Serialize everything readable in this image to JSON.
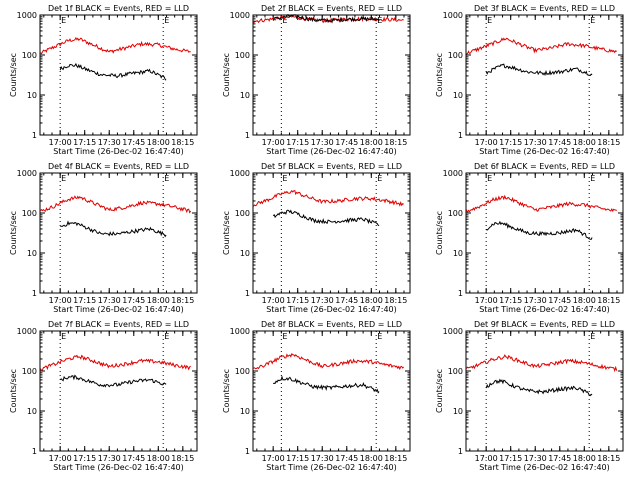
{
  "colors": {
    "background": "#ffffff",
    "events": "#000000",
    "lld": "#e00000"
  },
  "chart_data": [
    {
      "type": "line",
      "title": "Det 1f BLACK = Events, RED = LLD",
      "xlabel": "Start Time (26-Dec-02 16:47:40)",
      "ylabel": "Counts/sec",
      "y_scale": "log",
      "ylim": [
        1,
        1000
      ],
      "x_tick_labels": [
        "17:00",
        "17:15",
        "17:30",
        "17:45",
        "18:00",
        "18:15"
      ],
      "y_tick_labels": [
        "1",
        "10",
        "100",
        "1000"
      ],
      "markers": [
        "E",
        "E"
      ],
      "marker_times": [
        "17:00",
        "18:03"
      ],
      "series": [
        {
          "color": "red",
          "x": [
            "16:48",
            "16:55",
            "17:05",
            "17:12",
            "17:20",
            "17:30",
            "17:40",
            "17:50",
            "18:00",
            "18:10",
            "18:20"
          ],
          "values": [
            110,
            150,
            230,
            250,
            180,
            120,
            150,
            190,
            180,
            140,
            120
          ]
        },
        {
          "color": "black",
          "x": [
            "17:00",
            "17:05",
            "17:10",
            "17:15",
            "17:25",
            "17:35",
            "17:45",
            "17:55",
            "18:05"
          ],
          "values": [
            45,
            55,
            55,
            45,
            32,
            30,
            35,
            40,
            25
          ]
        }
      ]
    },
    {
      "type": "line",
      "title": "Det 2f BLACK = Events, RED = LLD",
      "xlabel": "Start Time (26-Dec-02 16:47:40)",
      "ylabel": "Counts/sec",
      "y_scale": "log",
      "ylim": [
        1,
        1000
      ],
      "x_tick_labels": [
        "17:00",
        "17:15",
        "17:30",
        "17:45",
        "18:00",
        "18:15"
      ],
      "y_tick_labels": [
        "1",
        "10",
        "100",
        "1000"
      ],
      "markers": [
        "E",
        "E"
      ],
      "marker_times": [
        "17:05",
        "18:03"
      ],
      "series": [
        {
          "color": "red",
          "x": [
            "16:48",
            "16:55",
            "17:05",
            "17:12",
            "17:20",
            "17:30",
            "17:40",
            "17:50",
            "18:00",
            "18:10",
            "18:20"
          ],
          "values": [
            700,
            750,
            850,
            900,
            800,
            720,
            760,
            800,
            800,
            770,
            740
          ]
        },
        {
          "color": "black",
          "x": [
            "17:00",
            "17:05",
            "17:10",
            "17:15",
            "17:25",
            "17:35",
            "17:45",
            "17:55",
            "18:05"
          ],
          "values": [
            800,
            850,
            950,
            900,
            750,
            720,
            780,
            800,
            780
          ]
        }
      ]
    },
    {
      "type": "line",
      "title": "Det 3f BLACK = Events, RED = LLD",
      "xlabel": "Start Time (26-Dec-02 16:47:40)",
      "ylabel": "Counts/sec",
      "y_scale": "log",
      "ylim": [
        1,
        1000
      ],
      "x_tick_labels": [
        "17:00",
        "17:15",
        "17:30",
        "17:45",
        "18:00",
        "18:15"
      ],
      "y_tick_labels": [
        "1",
        "10",
        "100",
        "1000"
      ],
      "markers": [
        "E",
        "E"
      ],
      "marker_times": [
        "17:00",
        "18:03"
      ],
      "series": [
        {
          "color": "red",
          "x": [
            "16:48",
            "16:55",
            "17:05",
            "17:12",
            "17:20",
            "17:30",
            "17:40",
            "17:50",
            "18:00",
            "18:10",
            "18:20"
          ],
          "values": [
            110,
            140,
            200,
            260,
            190,
            130,
            150,
            190,
            170,
            140,
            120
          ]
        },
        {
          "color": "black",
          "x": [
            "17:00",
            "17:05",
            "17:10",
            "17:15",
            "17:25",
            "17:35",
            "17:45",
            "17:55",
            "18:05"
          ],
          "values": [
            35,
            45,
            55,
            50,
            38,
            35,
            38,
            45,
            32
          ]
        }
      ]
    },
    {
      "type": "line",
      "title": "Det 4f BLACK = Events, RED = LLD",
      "xlabel": "Start Time (26-Dec-02 16:47:40)",
      "ylabel": "Counts/sec",
      "y_scale": "log",
      "ylim": [
        1,
        1000
      ],
      "x_tick_labels": [
        "17:00",
        "17:15",
        "17:30",
        "17:45",
        "18:00",
        "18:15"
      ],
      "y_tick_labels": [
        "1",
        "10",
        "100",
        "1000"
      ],
      "markers": [
        "E",
        "E"
      ],
      "marker_times": [
        "17:00",
        "18:03"
      ],
      "series": [
        {
          "color": "red",
          "x": [
            "16:48",
            "16:55",
            "17:05",
            "17:12",
            "17:20",
            "17:30",
            "17:40",
            "17:50",
            "18:00",
            "18:10",
            "18:20"
          ],
          "values": [
            110,
            140,
            220,
            250,
            180,
            120,
            140,
            180,
            170,
            140,
            110
          ]
        },
        {
          "color": "black",
          "x": [
            "17:00",
            "17:05",
            "17:10",
            "17:15",
            "17:25",
            "17:35",
            "17:45",
            "17:55",
            "18:05"
          ],
          "values": [
            45,
            55,
            55,
            45,
            30,
            30,
            35,
            40,
            28
          ]
        }
      ]
    },
    {
      "type": "line",
      "title": "Det 5f BLACK = Events, RED = LLD",
      "xlabel": "Start Time (26-Dec-02 16:47:40)",
      "ylabel": "Counts/sec",
      "y_scale": "log",
      "ylim": [
        1,
        1000
      ],
      "x_tick_labels": [
        "17:00",
        "17:15",
        "17:30",
        "17:45",
        "18:00",
        "18:15"
      ],
      "y_tick_labels": [
        "1",
        "10",
        "100",
        "1000"
      ],
      "markers": [
        "E",
        "E"
      ],
      "marker_times": [
        "17:05",
        "18:03"
      ],
      "series": [
        {
          "color": "red",
          "x": [
            "16:48",
            "16:55",
            "17:05",
            "17:12",
            "17:20",
            "17:30",
            "17:40",
            "17:50",
            "18:00",
            "18:10",
            "18:20"
          ],
          "values": [
            160,
            200,
            300,
            350,
            260,
            190,
            200,
            230,
            230,
            200,
            160
          ]
        },
        {
          "color": "black",
          "x": [
            "17:00",
            "17:05",
            "17:10",
            "17:15",
            "17:25",
            "17:35",
            "17:45",
            "17:55",
            "18:05"
          ],
          "values": [
            80,
            100,
            110,
            95,
            65,
            60,
            65,
            70,
            50
          ]
        }
      ]
    },
    {
      "type": "line",
      "title": "Det 6f BLACK = Events, RED = LLD",
      "xlabel": "Start Time (26-Dec-02 16:47:40)",
      "ylabel": "Counts/sec",
      "y_scale": "log",
      "ylim": [
        1,
        1000
      ],
      "x_tick_labels": [
        "17:00",
        "17:15",
        "17:30",
        "17:45",
        "18:00",
        "18:15"
      ],
      "y_tick_labels": [
        "1",
        "10",
        "100",
        "1000"
      ],
      "markers": [
        "E",
        "E"
      ],
      "marker_times": [
        "17:00",
        "18:03"
      ],
      "series": [
        {
          "color": "red",
          "x": [
            "16:48",
            "16:55",
            "17:05",
            "17:12",
            "17:20",
            "17:30",
            "17:40",
            "17:50",
            "18:00",
            "18:10",
            "18:20"
          ],
          "values": [
            110,
            140,
            220,
            250,
            180,
            120,
            140,
            170,
            160,
            130,
            110
          ]
        },
        {
          "color": "black",
          "x": [
            "17:00",
            "17:05",
            "17:10",
            "17:15",
            "17:25",
            "17:35",
            "17:45",
            "17:55",
            "18:05"
          ],
          "values": [
            40,
            55,
            55,
            45,
            32,
            30,
            32,
            38,
            22
          ]
        }
      ]
    },
    {
      "type": "line",
      "title": "Det 7f BLACK = Events, RED = LLD",
      "xlabel": "Start Time (26-Dec-02 16:47:40)",
      "ylabel": "Counts/sec",
      "y_scale": "log",
      "ylim": [
        1,
        1000
      ],
      "x_tick_labels": [
        "17:00",
        "17:15",
        "17:30",
        "17:45",
        "18:00",
        "18:15"
      ],
      "y_tick_labels": [
        "1",
        "10",
        "100",
        "1000"
      ],
      "markers": [
        "E",
        "E"
      ],
      "marker_times": [
        "17:00",
        "18:03"
      ],
      "series": [
        {
          "color": "red",
          "x": [
            "16:48",
            "16:55",
            "17:05",
            "17:12",
            "17:20",
            "17:30",
            "17:40",
            "17:50",
            "18:00",
            "18:10",
            "18:20"
          ],
          "values": [
            110,
            140,
            200,
            230,
            180,
            130,
            150,
            180,
            170,
            140,
            120
          ]
        },
        {
          "color": "black",
          "x": [
            "17:00",
            "17:05",
            "17:10",
            "17:15",
            "17:25",
            "17:35",
            "17:45",
            "17:55",
            "18:05"
          ],
          "values": [
            60,
            70,
            70,
            60,
            45,
            45,
            55,
            60,
            45
          ]
        }
      ]
    },
    {
      "type": "line",
      "title": "Det 8f BLACK = Events, RED = LLD",
      "xlabel": "Start Time (26-Dec-02 16:47:40)",
      "ylabel": "Counts/sec",
      "y_scale": "log",
      "ylim": [
        1,
        1000
      ],
      "x_tick_labels": [
        "17:00",
        "17:15",
        "17:30",
        "17:45",
        "18:00",
        "18:15"
      ],
      "y_tick_labels": [
        "1",
        "10",
        "100",
        "1000"
      ],
      "markers": [
        "E",
        "E"
      ],
      "marker_times": [
        "17:05",
        "18:03"
      ],
      "series": [
        {
          "color": "red",
          "x": [
            "16:48",
            "16:55",
            "17:05",
            "17:12",
            "17:20",
            "17:30",
            "17:40",
            "17:50",
            "18:00",
            "18:10",
            "18:20"
          ],
          "values": [
            110,
            140,
            220,
            260,
            190,
            130,
            150,
            180,
            170,
            140,
            120
          ]
        },
        {
          "color": "black",
          "x": [
            "17:00",
            "17:05",
            "17:10",
            "17:15",
            "17:25",
            "17:35",
            "17:45",
            "17:55",
            "18:05"
          ],
          "values": [
            50,
            65,
            65,
            55,
            40,
            38,
            42,
            45,
            30
          ]
        }
      ]
    },
    {
      "type": "line",
      "title": "Det 9f BLACK = Events, RED = LLD",
      "xlabel": "Start Time (26-Dec-02 16:47:40)",
      "ylabel": "Counts/sec",
      "y_scale": "log",
      "ylim": [
        1,
        1000
      ],
      "x_tick_labels": [
        "17:00",
        "17:15",
        "17:30",
        "17:45",
        "18:00",
        "18:15"
      ],
      "y_tick_labels": [
        "1",
        "10",
        "100",
        "1000"
      ],
      "markers": [
        "E",
        "E"
      ],
      "marker_times": [
        "17:00",
        "18:03"
      ],
      "series": [
        {
          "color": "red",
          "x": [
            "16:48",
            "16:55",
            "17:05",
            "17:12",
            "17:20",
            "17:30",
            "17:40",
            "17:50",
            "18:00",
            "18:10",
            "18:20"
          ],
          "values": [
            110,
            140,
            200,
            230,
            180,
            130,
            150,
            180,
            160,
            130,
            110
          ]
        },
        {
          "color": "black",
          "x": [
            "17:00",
            "17:05",
            "17:10",
            "17:15",
            "17:25",
            "17:35",
            "17:45",
            "17:55",
            "18:05"
          ],
          "values": [
            40,
            55,
            55,
            45,
            32,
            30,
            35,
            38,
            25
          ]
        }
      ]
    }
  ]
}
